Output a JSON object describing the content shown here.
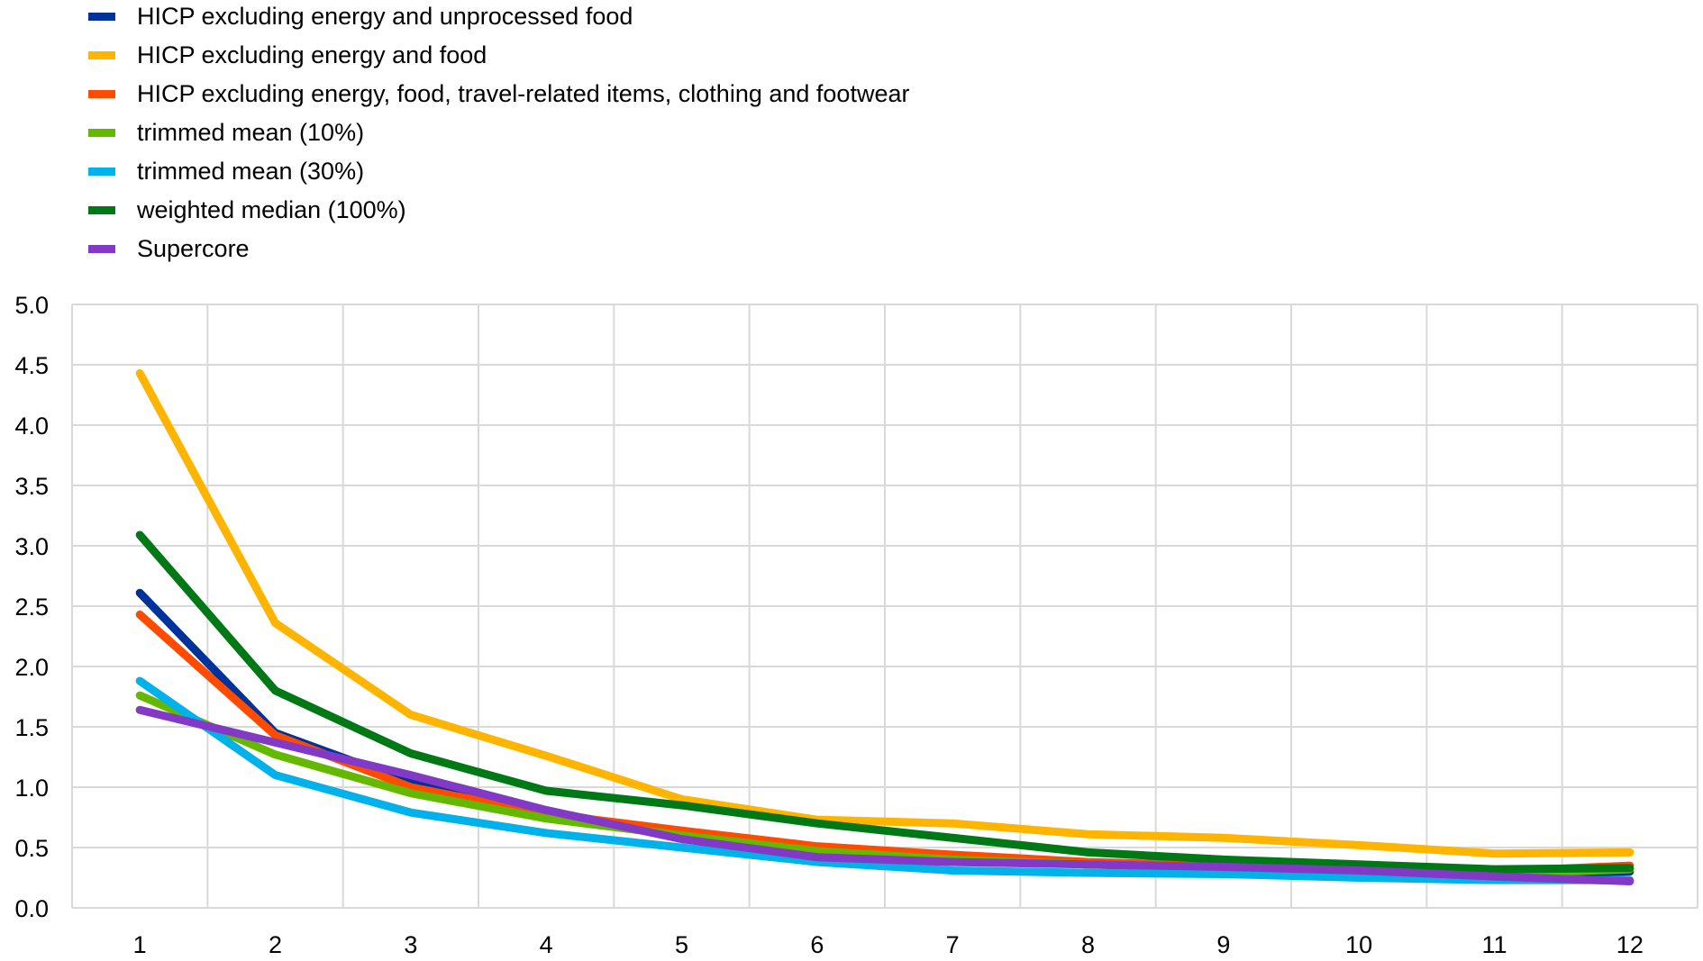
{
  "chart_data": {
    "type": "line",
    "title": "",
    "xlabel": "",
    "ylabel": "",
    "x": [
      1,
      2,
      3,
      4,
      5,
      6,
      7,
      8,
      9,
      10,
      11,
      12
    ],
    "x_tick_labels": [
      "1",
      "2",
      "3",
      "4",
      "5",
      "6",
      "7",
      "8",
      "9",
      "10",
      "11",
      "12"
    ],
    "y_tick_labels": [
      "0.0",
      "0.5",
      "1.0",
      "1.5",
      "2.0",
      "2.5",
      "3.0",
      "3.5",
      "4.0",
      "4.5",
      "5.0"
    ],
    "ylim": [
      0,
      5
    ],
    "grid": true,
    "legend_position": "top-left",
    "series": [
      {
        "name": "HICP excluding energy and unprocessed food",
        "color": "#003299",
        "values": [
          2.61,
          1.45,
          1.04,
          0.8,
          0.6,
          0.48,
          0.4,
          0.36,
          0.33,
          0.3,
          0.27,
          0.3
        ]
      },
      {
        "name": "HICP excluding energy and food",
        "color": "#FFB400",
        "values": [
          4.43,
          2.36,
          1.6,
          1.26,
          0.9,
          0.73,
          0.7,
          0.61,
          0.58,
          0.52,
          0.45,
          0.46
        ]
      },
      {
        "name": "HICP excluding energy, food, travel-related items, clothing and footwear",
        "color": "#FF4B00",
        "values": [
          2.43,
          1.43,
          1.0,
          0.78,
          0.64,
          0.51,
          0.44,
          0.38,
          0.35,
          0.32,
          0.3,
          0.35
        ]
      },
      {
        "name": "trimmed mean (10%)",
        "color": "#65B800",
        "values": [
          1.76,
          1.27,
          0.95,
          0.74,
          0.6,
          0.47,
          0.4,
          0.36,
          0.34,
          0.3,
          0.28,
          0.32
        ]
      },
      {
        "name": "trimmed mean (30%)",
        "color": "#00B1EA",
        "values": [
          1.88,
          1.1,
          0.79,
          0.62,
          0.5,
          0.38,
          0.31,
          0.29,
          0.28,
          0.25,
          0.23,
          0.23
        ]
      },
      {
        "name": "weighted median (100%)",
        "color": "#007816",
        "values": [
          3.09,
          1.8,
          1.28,
          0.97,
          0.85,
          0.7,
          0.58,
          0.46,
          0.4,
          0.36,
          0.32,
          0.33
        ]
      },
      {
        "name": "Supercore",
        "color": "#8139C6",
        "values": [
          1.64,
          1.37,
          1.1,
          0.81,
          0.57,
          0.42,
          0.38,
          0.36,
          0.34,
          0.31,
          0.26,
          0.22
        ]
      }
    ]
  }
}
